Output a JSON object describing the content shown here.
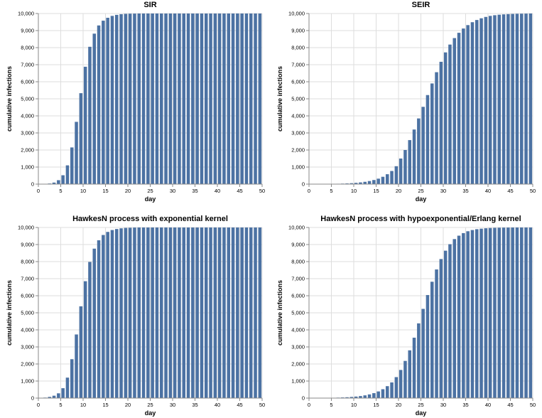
{
  "chart_data": [
    {
      "type": "bar",
      "title": "SIR",
      "xlabel": "day",
      "ylabel": "cumulative infections",
      "xlim": [
        0,
        50
      ],
      "ylim": [
        0,
        10000
      ],
      "xticks": [
        0,
        5,
        10,
        15,
        20,
        25,
        30,
        35,
        40,
        45,
        50
      ],
      "yticks": [
        0,
        1000,
        2000,
        3000,
        4000,
        5000,
        6000,
        7000,
        8000,
        9000,
        10000
      ],
      "xtick_labels": [
        "0",
        "5",
        "10",
        "15",
        "20",
        "25",
        "30",
        "35",
        "40",
        "45",
        "50"
      ],
      "ytick_labels": [
        "0",
        "1,000",
        "2,000",
        "3,000",
        "4,000",
        "5,000",
        "6,000",
        "7,000",
        "8,000",
        "9,000",
        "10,000"
      ],
      "grid": true,
      "color": "#4c72a3",
      "x": [
        1,
        2,
        3,
        4,
        5,
        6,
        7,
        8,
        9,
        10,
        11,
        12,
        13,
        14,
        15,
        16,
        17,
        18,
        19,
        20,
        21,
        22,
        23,
        24,
        25,
        26,
        27,
        28,
        29,
        30,
        31,
        32,
        33,
        34,
        35,
        36,
        37,
        38,
        39,
        40,
        41,
        42,
        43,
        44,
        45,
        46,
        47,
        48,
        49,
        50
      ],
      "values": [
        5,
        15,
        35,
        90,
        230,
        520,
        1100,
        2150,
        3650,
        5330,
        6880,
        8050,
        8820,
        9300,
        9580,
        9750,
        9860,
        9920,
        9960,
        9980,
        9990,
        9995,
        10000,
        10000,
        10000,
        10000,
        10000,
        10000,
        10000,
        10000,
        10000,
        10000,
        10000,
        10000,
        10000,
        10000,
        10000,
        10000,
        10000,
        10000,
        10000,
        10000,
        10000,
        10000,
        10000,
        10000,
        10000,
        10000,
        10000,
        10000
      ]
    },
    {
      "type": "bar",
      "title": "SEIR",
      "xlabel": "day",
      "ylabel": "cumulative infections",
      "xlim": [
        0,
        50
      ],
      "ylim": [
        0,
        10000
      ],
      "xticks": [
        0,
        5,
        10,
        15,
        20,
        25,
        30,
        35,
        40,
        45,
        50
      ],
      "yticks": [
        0,
        1000,
        2000,
        3000,
        4000,
        5000,
        6000,
        7000,
        8000,
        9000,
        10000
      ],
      "xtick_labels": [
        "0",
        "5",
        "10",
        "15",
        "20",
        "25",
        "30",
        "35",
        "40",
        "45",
        "50"
      ],
      "ytick_labels": [
        "0",
        "1,000",
        "2,000",
        "3,000",
        "4,000",
        "5,000",
        "6,000",
        "7,000",
        "8,000",
        "9,000",
        "10,000"
      ],
      "grid": true,
      "color": "#4c72a3",
      "x": [
        1,
        2,
        3,
        4,
        5,
        6,
        7,
        8,
        9,
        10,
        11,
        12,
        13,
        14,
        15,
        16,
        17,
        18,
        19,
        20,
        21,
        22,
        23,
        24,
        25,
        26,
        27,
        28,
        29,
        30,
        31,
        32,
        33,
        34,
        35,
        36,
        37,
        38,
        39,
        40,
        41,
        42,
        43,
        44,
        45,
        46,
        47,
        48,
        49,
        50
      ],
      "values": [
        2,
        4,
        6,
        8,
        12,
        16,
        22,
        30,
        40,
        55,
        75,
        100,
        135,
        180,
        240,
        320,
        430,
        580,
        770,
        1050,
        1500,
        2000,
        2580,
        3200,
        3850,
        4530,
        5220,
        5900,
        6560,
        7170,
        7720,
        8180,
        8560,
        8870,
        9120,
        9320,
        9490,
        9620,
        9720,
        9800,
        9860,
        9900,
        9930,
        9950,
        9965,
        9975,
        9985,
        9990,
        9995,
        10000
      ]
    },
    {
      "type": "bar",
      "title": "HawkesN process with exponential kernel",
      "xlabel": "day",
      "ylabel": "cumulative infections",
      "xlim": [
        0,
        50
      ],
      "ylim": [
        0,
        10000
      ],
      "xticks": [
        0,
        5,
        10,
        15,
        20,
        25,
        30,
        35,
        40,
        45,
        50
      ],
      "yticks": [
        0,
        1000,
        2000,
        3000,
        4000,
        5000,
        6000,
        7000,
        8000,
        9000,
        10000
      ],
      "xtick_labels": [
        "0",
        "5",
        "10",
        "15",
        "20",
        "25",
        "30",
        "35",
        "40",
        "45",
        "50"
      ],
      "ytick_labels": [
        "0",
        "1,000",
        "2,000",
        "3,000",
        "4,000",
        "5,000",
        "6,000",
        "7,000",
        "8,000",
        "9,000",
        "10,000"
      ],
      "grid": true,
      "color": "#4c72a3",
      "x": [
        1,
        2,
        3,
        4,
        5,
        6,
        7,
        8,
        9,
        10,
        11,
        12,
        13,
        14,
        15,
        16,
        17,
        18,
        19,
        20,
        21,
        22,
        23,
        24,
        25,
        26,
        27,
        28,
        29,
        30,
        31,
        32,
        33,
        34,
        35,
        36,
        37,
        38,
        39,
        40,
        41,
        42,
        43,
        44,
        45,
        46,
        47,
        48,
        49,
        50
      ],
      "values": [
        10,
        30,
        70,
        140,
        280,
        580,
        1200,
        2280,
        3730,
        5380,
        6850,
        7980,
        8760,
        9250,
        9560,
        9740,
        9850,
        9910,
        9950,
        9975,
        9985,
        9995,
        10000,
        10000,
        10000,
        10000,
        10000,
        10000,
        10000,
        10000,
        10000,
        10000,
        10000,
        10000,
        10000,
        10000,
        10000,
        10000,
        10000,
        10000,
        10000,
        10000,
        10000,
        10000,
        10000,
        10000,
        10000,
        10000,
        10000,
        10000
      ]
    },
    {
      "type": "bar",
      "title": "HawkesN process with hypoexponential/Erlang kernel",
      "xlabel": "day",
      "ylabel": "cumulative infections",
      "xlim": [
        0,
        50
      ],
      "ylim": [
        0,
        10000
      ],
      "xticks": [
        0,
        5,
        10,
        15,
        20,
        25,
        30,
        35,
        40,
        45,
        50
      ],
      "yticks": [
        0,
        1000,
        2000,
        3000,
        4000,
        5000,
        6000,
        7000,
        8000,
        9000,
        10000
      ],
      "xtick_labels": [
        "0",
        "5",
        "10",
        "15",
        "20",
        "25",
        "30",
        "35",
        "40",
        "45",
        "50"
      ],
      "ytick_labels": [
        "0",
        "1,000",
        "2,000",
        "3,000",
        "4,000",
        "5,000",
        "6,000",
        "7,000",
        "8,000",
        "9,000",
        "10,000"
      ],
      "grid": true,
      "color": "#4c72a3",
      "x": [
        1,
        2,
        3,
        4,
        5,
        6,
        7,
        8,
        9,
        10,
        11,
        12,
        13,
        14,
        15,
        16,
        17,
        18,
        19,
        20,
        21,
        22,
        23,
        24,
        25,
        26,
        27,
        28,
        29,
        30,
        31,
        32,
        33,
        34,
        35,
        36,
        37,
        38,
        39,
        40,
        41,
        42,
        43,
        44,
        45,
        46,
        47,
        48,
        49,
        50
      ],
      "values": [
        2,
        4,
        6,
        10,
        14,
        20,
        28,
        38,
        50,
        68,
        90,
        120,
        160,
        215,
        290,
        390,
        520,
        700,
        920,
        1230,
        1650,
        2180,
        2800,
        3540,
        4380,
        5230,
        6040,
        6820,
        7540,
        8150,
        8640,
        9020,
        9320,
        9520,
        9670,
        9780,
        9850,
        9900,
        9930,
        9955,
        9970,
        9980,
        9988,
        9993,
        9996,
        9998,
        10000,
        10000,
        10000,
        10000
      ]
    }
  ]
}
